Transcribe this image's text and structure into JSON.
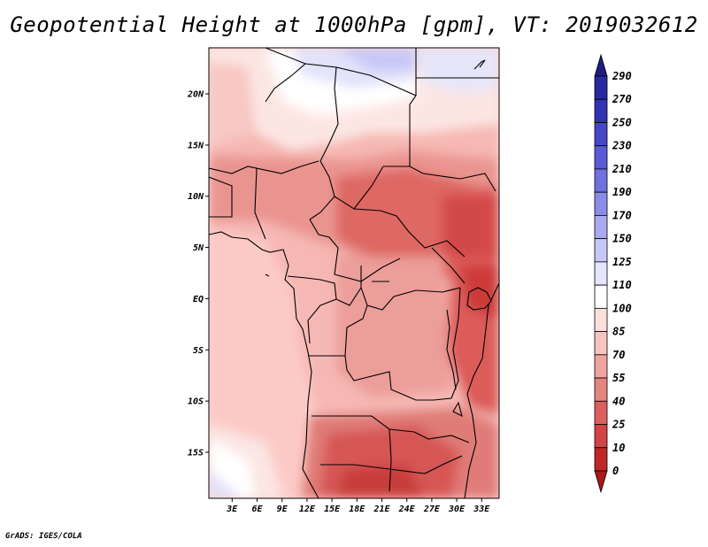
{
  "title": "Geopotential Height at 1000hPa [gpm], VT: 2019032612",
  "footer": "GrADS: IGES/COLA",
  "map": {
    "lat_labels": [
      "20N",
      "15N",
      "10N",
      "5N",
      "EQ",
      "5S",
      "10S",
      "15S"
    ],
    "lon_labels": [
      "3E",
      "6E",
      "9E",
      "12E",
      "15E",
      "18E",
      "21E",
      "24E",
      "27E",
      "30E",
      "33E"
    ],
    "lat_range": [
      -19.5,
      24.5
    ],
    "lon_range": [
      0.2,
      35.1
    ]
  },
  "colorbar": {
    "labels": [
      "290",
      "270",
      "250",
      "230",
      "210",
      "190",
      "170",
      "150",
      "125",
      "110",
      "100",
      "85",
      "70",
      "55",
      "40",
      "25",
      "10",
      "0"
    ],
    "colors": [
      "#1e1e7c",
      "#2828a0",
      "#3232b4",
      "#4646c8",
      "#5a5ad6",
      "#7070e0",
      "#8c8ce8",
      "#aaaaf0",
      "#c8c8f6",
      "#e4e4fa",
      "#ffffff",
      "#fce0dc",
      "#f8c4c0",
      "#f0a4a0",
      "#e68480",
      "#dc6060",
      "#d24444",
      "#c02828",
      "#a81818"
    ]
  }
}
